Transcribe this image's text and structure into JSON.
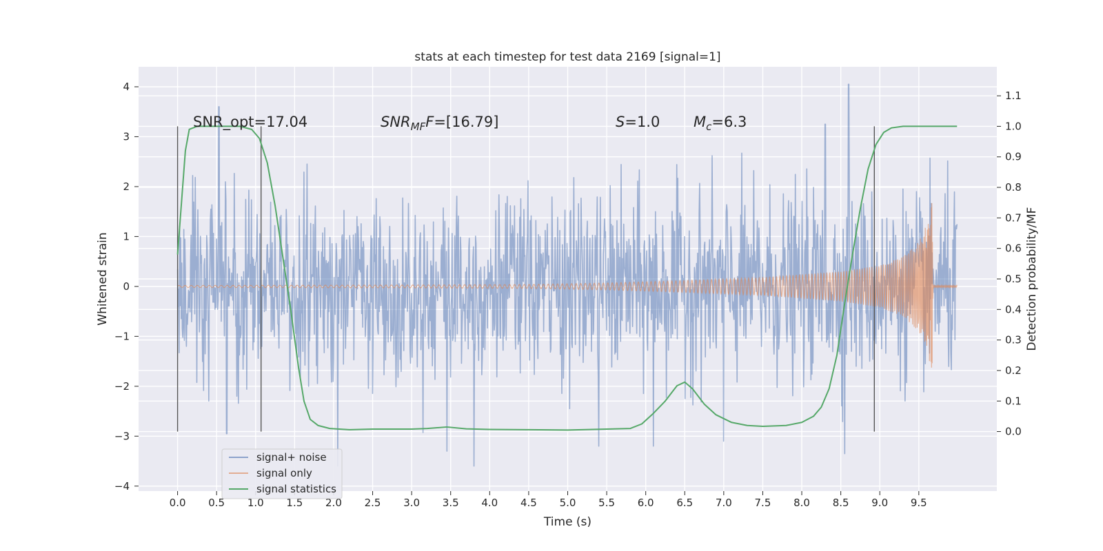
{
  "chart_data": {
    "type": "line",
    "title": "stats at each timestep for test data 2169 [signal=1]",
    "xlabel": "Time (s)",
    "ylabel_left": "Whitened strain",
    "ylabel_right": "Detection probability/MF",
    "xlim": [
      -0.5,
      10.5
    ],
    "ylim_left": [
      -4.1,
      4.4
    ],
    "ylim_right": [
      -0.195,
      1.195
    ],
    "x_ticks": [
      "0.0",
      "0.5",
      "1.0",
      "1.5",
      "2.0",
      "2.5",
      "3.0",
      "3.5",
      "4.0",
      "4.5",
      "5.0",
      "5.5",
      "6.0",
      "6.5",
      "7.0",
      "7.5",
      "8.0",
      "8.5",
      "9.0",
      "9.5"
    ],
    "y_ticks_left": [
      "4",
      "3",
      "2",
      "1",
      "0",
      "−1",
      "−2",
      "−3",
      "−4"
    ],
    "y_ticks_right": [
      "1.1",
      "1.0",
      "0.9",
      "0.8",
      "0.7",
      "0.6",
      "0.5",
      "0.4",
      "0.3",
      "0.2",
      "0.1",
      "0.0"
    ],
    "grid": true,
    "legend_position": "lower-left",
    "annotations": {
      "snr_opt": "SNR_opt=17.04",
      "snr_mf_main": "SNR",
      "snr_mf_sub": "MF",
      "snr_mf_value": "=[16.79]",
      "s_label": "S",
      "s_value": "=1.0",
      "mc_label": "M",
      "mc_sub": "c",
      "mc_value": "=6.3"
    },
    "vertical_markers": [
      0.0,
      1.07,
      8.93
    ],
    "series": [
      {
        "name": "signal+ noise",
        "axis": "left",
        "color": "#4c72b0",
        "opacity": 0.5,
        "kind": "noise",
        "x_range": [
          0.0,
          9.99
        ],
        "std": 0.9,
        "notable_peaks": [
          {
            "x": 0.53,
            "y": 3.6
          },
          {
            "x": 0.63,
            "y": -2.95
          },
          {
            "x": 2.05,
            "y": -3.6
          },
          {
            "x": 3.45,
            "y": -3.3
          },
          {
            "x": 3.8,
            "y": -3.6
          },
          {
            "x": 5.4,
            "y": -3.2
          },
          {
            "x": 6.1,
            "y": -3.2
          },
          {
            "x": 7.0,
            "y": -3.1
          },
          {
            "x": 8.3,
            "y": 3.25
          },
          {
            "x": 8.55,
            "y": -3.35
          },
          {
            "x": 8.6,
            "y": 4.05
          }
        ]
      },
      {
        "name": "signal only",
        "axis": "left",
        "color": "#dd8452",
        "opacity": 0.6,
        "kind": "chirp",
        "envelope": [
          {
            "x": 0.0,
            "y": 0.02
          },
          {
            "x": 3.0,
            "y": 0.03
          },
          {
            "x": 4.5,
            "y": 0.04
          },
          {
            "x": 5.5,
            "y": 0.07
          },
          {
            "x": 6.5,
            "y": 0.12
          },
          {
            "x": 7.5,
            "y": 0.18
          },
          {
            "x": 8.5,
            "y": 0.3
          },
          {
            "x": 9.0,
            "y": 0.42
          },
          {
            "x": 9.3,
            "y": 0.6
          },
          {
            "x": 9.5,
            "y": 0.9
          },
          {
            "x": 9.62,
            "y": 1.3
          },
          {
            "x": 9.67,
            "y": 1.95
          },
          {
            "x": 9.68,
            "y": 0.02
          },
          {
            "x": 9.99,
            "y": 0.02
          }
        ]
      },
      {
        "name": "signal statistics",
        "axis": "right",
        "color": "#55a868",
        "opacity": 1.0,
        "kind": "line",
        "points": [
          {
            "x": 0.0,
            "y": 0.58
          },
          {
            "x": 0.05,
            "y": 0.75
          },
          {
            "x": 0.1,
            "y": 0.92
          },
          {
            "x": 0.15,
            "y": 0.99
          },
          {
            "x": 0.25,
            "y": 1.0
          },
          {
            "x": 0.5,
            "y": 1.0
          },
          {
            "x": 0.8,
            "y": 1.0
          },
          {
            "x": 0.95,
            "y": 0.99
          },
          {
            "x": 1.05,
            "y": 0.96
          },
          {
            "x": 1.15,
            "y": 0.88
          },
          {
            "x": 1.25,
            "y": 0.74
          },
          {
            "x": 1.35,
            "y": 0.57
          },
          {
            "x": 1.45,
            "y": 0.4
          },
          {
            "x": 1.55,
            "y": 0.21
          },
          {
            "x": 1.62,
            "y": 0.1
          },
          {
            "x": 1.7,
            "y": 0.04
          },
          {
            "x": 1.8,
            "y": 0.02
          },
          {
            "x": 1.95,
            "y": 0.01
          },
          {
            "x": 2.2,
            "y": 0.006
          },
          {
            "x": 2.5,
            "y": 0.008
          },
          {
            "x": 3.0,
            "y": 0.008
          },
          {
            "x": 3.2,
            "y": 0.01
          },
          {
            "x": 3.45,
            "y": 0.015
          },
          {
            "x": 3.7,
            "y": 0.009
          },
          {
            "x": 4.0,
            "y": 0.007
          },
          {
            "x": 4.5,
            "y": 0.006
          },
          {
            "x": 5.0,
            "y": 0.005
          },
          {
            "x": 5.5,
            "y": 0.008
          },
          {
            "x": 5.8,
            "y": 0.01
          },
          {
            "x": 5.95,
            "y": 0.025
          },
          {
            "x": 6.1,
            "y": 0.06
          },
          {
            "x": 6.25,
            "y": 0.1
          },
          {
            "x": 6.4,
            "y": 0.15
          },
          {
            "x": 6.5,
            "y": 0.162
          },
          {
            "x": 6.6,
            "y": 0.14
          },
          {
            "x": 6.75,
            "y": 0.09
          },
          {
            "x": 6.9,
            "y": 0.055
          },
          {
            "x": 7.1,
            "y": 0.03
          },
          {
            "x": 7.3,
            "y": 0.02
          },
          {
            "x": 7.5,
            "y": 0.017
          },
          {
            "x": 7.8,
            "y": 0.02
          },
          {
            "x": 8.0,
            "y": 0.03
          },
          {
            "x": 8.15,
            "y": 0.05
          },
          {
            "x": 8.25,
            "y": 0.08
          },
          {
            "x": 8.35,
            "y": 0.14
          },
          {
            "x": 8.45,
            "y": 0.25
          },
          {
            "x": 8.55,
            "y": 0.42
          },
          {
            "x": 8.65,
            "y": 0.58
          },
          {
            "x": 8.75,
            "y": 0.73
          },
          {
            "x": 8.85,
            "y": 0.86
          },
          {
            "x": 8.95,
            "y": 0.94
          },
          {
            "x": 9.05,
            "y": 0.98
          },
          {
            "x": 9.15,
            "y": 0.995
          },
          {
            "x": 9.3,
            "y": 1.0
          },
          {
            "x": 9.99,
            "y": 1.0
          }
        ]
      }
    ]
  }
}
